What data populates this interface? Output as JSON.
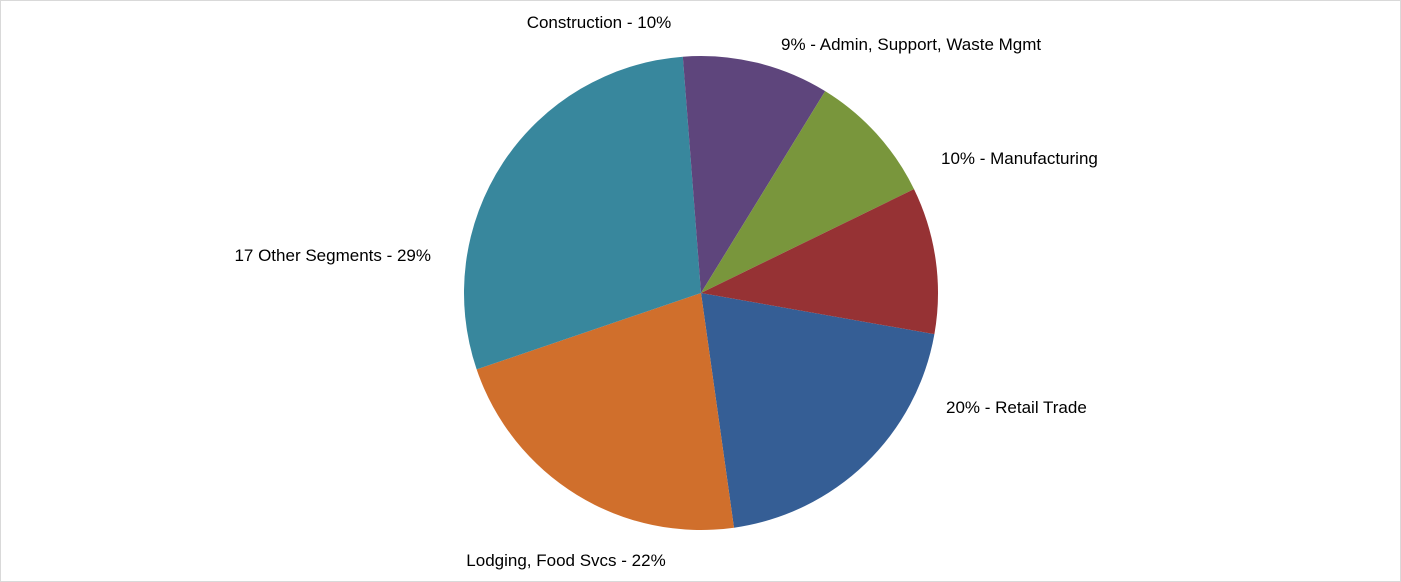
{
  "chart_data": {
    "type": "pie",
    "title": "",
    "slices": [
      {
        "label": "Retail Trade",
        "value": 20,
        "color": "#355E95",
        "display": "20% - Retail Trade"
      },
      {
        "label": "Lodging, Food Svcs",
        "value": 22,
        "color": "#D06F2C",
        "display": "Lodging, Food Svcs - 22%"
      },
      {
        "label": "17 Other Segments",
        "value": 29,
        "color": "#38879D",
        "display": "17 Other Segments - 29%"
      },
      {
        "label": "Construction",
        "value": 10,
        "color": "#5E457C",
        "display": "Construction - 10%"
      },
      {
        "label": "Admin, Support, Waste Mgmt",
        "value": 9,
        "color": "#79963C",
        "display": "9% - Admin, Support, Waste Mgmt"
      },
      {
        "label": "Manufacturing",
        "value": 10,
        "color": "#963234",
        "display": "10% - Manufacturing"
      }
    ],
    "legend": "none"
  }
}
